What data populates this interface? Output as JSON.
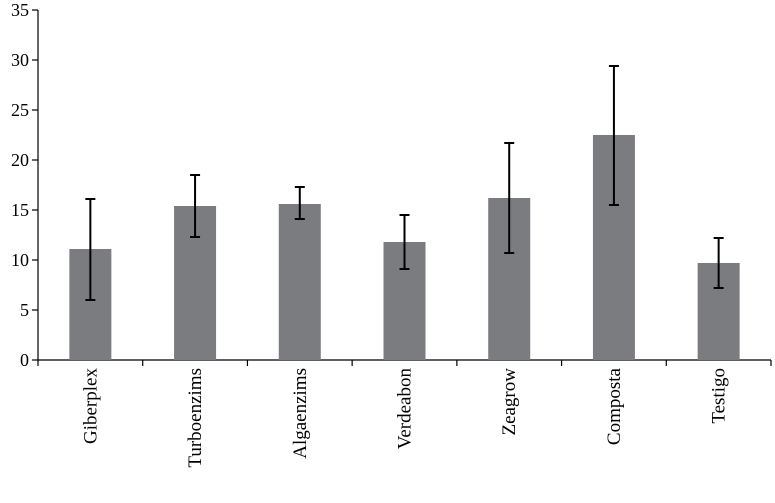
{
  "chart_data": {
    "type": "bar",
    "title": "",
    "xlabel": "",
    "ylabel": "",
    "categories": [
      "Giberplex",
      "Turboenzims",
      "Algaenzims",
      "Verdeabon",
      "Zeagrow",
      "Composta",
      "Testigo"
    ],
    "values": [
      11.1,
      15.4,
      15.6,
      11.8,
      16.2,
      22.5,
      9.7
    ],
    "error_low": [
      6.0,
      12.3,
      14.1,
      9.1,
      10.7,
      15.5,
      7.2
    ],
    "error_high": [
      16.1,
      18.5,
      17.3,
      14.5,
      21.7,
      29.4,
      12.2
    ],
    "ylim": [
      0,
      35
    ],
    "yticks": [
      "0",
      "5",
      "10",
      "15",
      "20",
      "25",
      "30",
      "35"
    ],
    "grid": false,
    "bar_color": "#7a7c80"
  }
}
